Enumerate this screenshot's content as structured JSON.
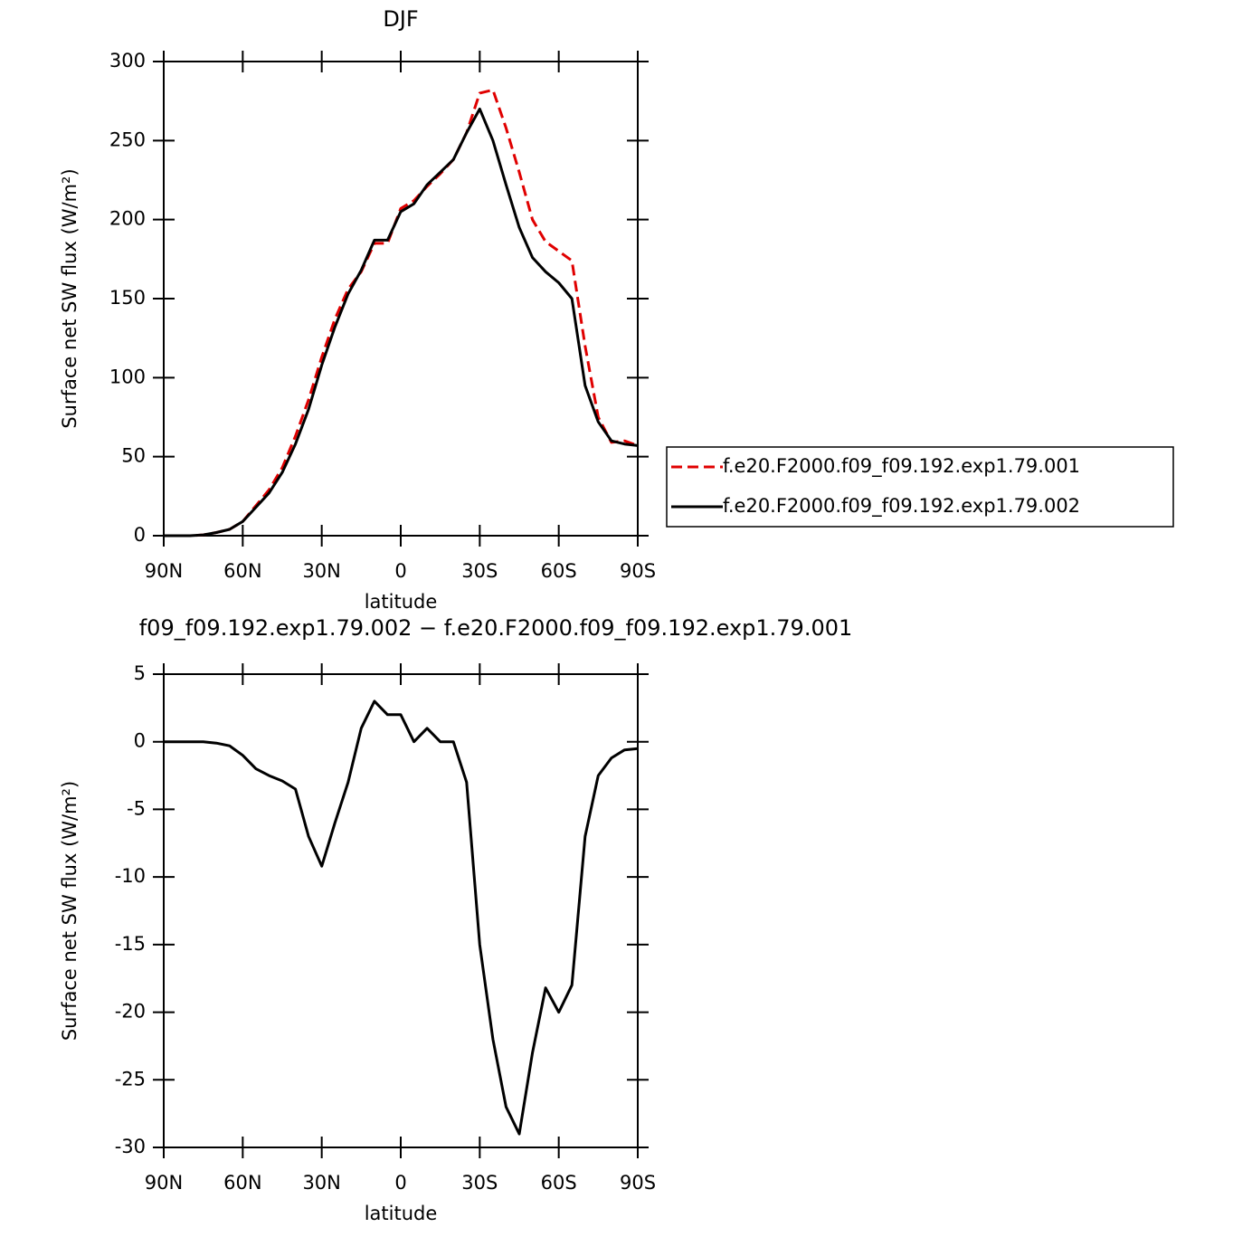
{
  "chart_data": [
    {
      "type": "line",
      "title": "DJF",
      "x_label": "latitude",
      "y_label": "Surface net SW flux (W/m²)",
      "x": [
        90,
        85,
        80,
        75,
        70,
        65,
        60,
        55,
        50,
        45,
        40,
        35,
        30,
        25,
        20,
        15,
        10,
        5,
        0,
        -5,
        -10,
        -15,
        -20,
        -25,
        -30,
        -35,
        -40,
        -45,
        -50,
        -55,
        -60,
        -65,
        -70,
        -75,
        -80,
        -85,
        -90
      ],
      "series": [
        {
          "name": "f.e20.F2000.f09_f09.192.exp1.79.001",
          "color": "#e00000",
          "dash": true,
          "values": [
            0,
            0,
            0,
            0.5,
            2,
            4,
            9,
            19,
            29,
            43,
            63,
            86,
            113,
            137,
            156,
            167,
            185,
            185,
            207,
            212,
            221,
            229,
            238,
            255,
            280,
            282,
            258,
            230,
            200,
            186,
            180,
            174,
            120,
            75,
            59,
            60,
            57
          ]
        },
        {
          "name": "f.e20.F2000.f09_f09.192.exp1.79.002",
          "color": "#000000",
          "dash": false,
          "values": [
            0,
            0,
            0,
            0.5,
            2,
            4,
            9,
            18,
            27,
            40,
            58,
            80,
            108,
            132,
            153,
            168,
            187,
            187,
            205,
            210,
            222,
            230,
            238,
            255,
            270,
            250,
            222,
            195,
            176,
            167,
            160,
            150,
            95,
            72,
            60,
            58,
            57
          ]
        }
      ],
      "xlim": [
        90,
        -90
      ],
      "xticks": [
        {
          "value": 90,
          "label": "90N"
        },
        {
          "value": 60,
          "label": "60N"
        },
        {
          "value": 30,
          "label": "30N"
        },
        0,
        {
          "value": -30,
          "label": "30S"
        },
        {
          "value": -60,
          "label": "60S"
        },
        {
          "value": -90,
          "label": "90S"
        }
      ],
      "ylim": [
        0,
        300
      ],
      "yticks": [
        0,
        50,
        100,
        150,
        200,
        250,
        300
      ],
      "legend": "right"
    },
    {
      "type": "line",
      "title": "f09_f09.192.exp1.79.002 − f.e20.F2000.f09_f09.192.exp1.79.001",
      "x_label": "latitude",
      "y_label": "Surface net SW flux (W/m²)",
      "x": [
        90,
        85,
        80,
        75,
        70,
        65,
        60,
        55,
        50,
        45,
        40,
        35,
        30,
        25,
        20,
        15,
        10,
        5,
        0,
        -5,
        -10,
        -15,
        -20,
        -25,
        -30,
        -35,
        -40,
        -45,
        -50,
        -55,
        -60,
        -65,
        -70,
        -75,
        -80,
        -85,
        -90
      ],
      "series": [
        {
          "color": "#000000",
          "dash": false,
          "values": [
            0,
            0,
            0,
            0,
            -0.1,
            -0.3,
            -1,
            -2,
            -2.5,
            -2.9,
            -3.5,
            -7,
            -9.2,
            -6,
            -3,
            1,
            3,
            2,
            2,
            0,
            1,
            0,
            0,
            -3,
            -15,
            -22,
            -27,
            -29,
            -23,
            -18.2,
            -20,
            -18,
            -7,
            -2.5,
            -1.2,
            -0.6,
            -0.5
          ]
        }
      ],
      "xlim": [
        90,
        -90
      ],
      "xticks": [
        {
          "value": 90,
          "label": "90N"
        },
        {
          "value": 60,
          "label": "60N"
        },
        {
          "value": 30,
          "label": "30N"
        },
        0,
        {
          "value": -30,
          "label": "30S"
        },
        {
          "value": -60,
          "label": "60S"
        },
        {
          "value": -90,
          "label": "90S"
        }
      ],
      "ylim": [
        -30,
        5
      ],
      "yticks": [
        -30,
        -25,
        -20,
        -15,
        -10,
        -5,
        0,
        5
      ]
    }
  ]
}
